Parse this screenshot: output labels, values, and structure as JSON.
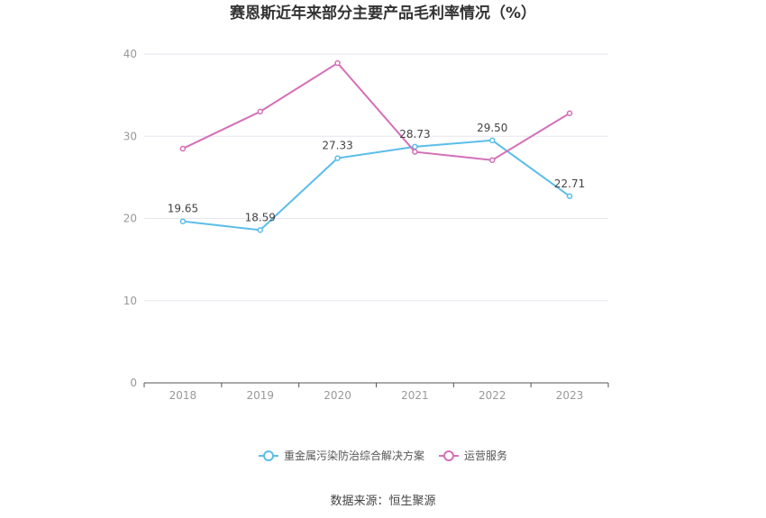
{
  "chart_data": {
    "type": "line",
    "title": "赛恩斯近年来部分主要产品毛利率情况（%）",
    "categories": [
      "2018",
      "2019",
      "2020",
      "2021",
      "2022",
      "2023"
    ],
    "ylim": [
      0,
      40
    ],
    "yticks": [
      0,
      10,
      20,
      30,
      40
    ],
    "grid": true,
    "legend_position": "bottom",
    "series": [
      {
        "name": "重金属污染防治综合解决方案",
        "color": "#5bbdea",
        "values": [
          19.65,
          18.59,
          27.33,
          28.73,
          29.5,
          22.71
        ],
        "labels": [
          "19.65",
          "18.59",
          "27.33",
          "28.73",
          "29.50",
          "22.71"
        ]
      },
      {
        "name": "运营服务",
        "color": "#d46fb8",
        "values": [
          28.5,
          33.0,
          38.9,
          28.1,
          27.1,
          32.8
        ],
        "labels": null
      }
    ]
  },
  "source": "数据来源：恒生聚源"
}
